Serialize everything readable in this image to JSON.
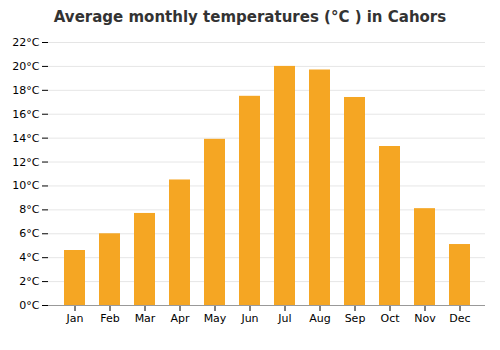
{
  "chart_data": {
    "type": "bar",
    "title": "Average monthly temperatures (°C ) in Cahors",
    "categories": [
      "Jan",
      "Feb",
      "Mar",
      "Apr",
      "May",
      "Jun",
      "Jul",
      "Aug",
      "Sep",
      "Oct",
      "Nov",
      "Dec"
    ],
    "values": [
      4.6,
      6.0,
      7.7,
      10.5,
      13.9,
      17.5,
      20.0,
      19.7,
      17.4,
      13.3,
      8.1,
      5.1
    ],
    "color": "#F5A623",
    "ylim": [
      0,
      22
    ],
    "yticks": [
      {
        "value": 0,
        "label": "0°C"
      },
      {
        "value": 2,
        "label": "2°C"
      },
      {
        "value": 4,
        "label": "4°C"
      },
      {
        "value": 6,
        "label": "6°C"
      },
      {
        "value": 8,
        "label": "8°C"
      },
      {
        "value": 10,
        "label": "10°C"
      },
      {
        "value": 12,
        "label": "12°C"
      },
      {
        "value": 14,
        "label": "14°C"
      },
      {
        "value": 16,
        "label": "16°C"
      },
      {
        "value": 18,
        "label": "18°C"
      },
      {
        "value": 20,
        "label": "20°C"
      },
      {
        "value": 22,
        "label": "22°C"
      }
    ],
    "grid": true
  }
}
